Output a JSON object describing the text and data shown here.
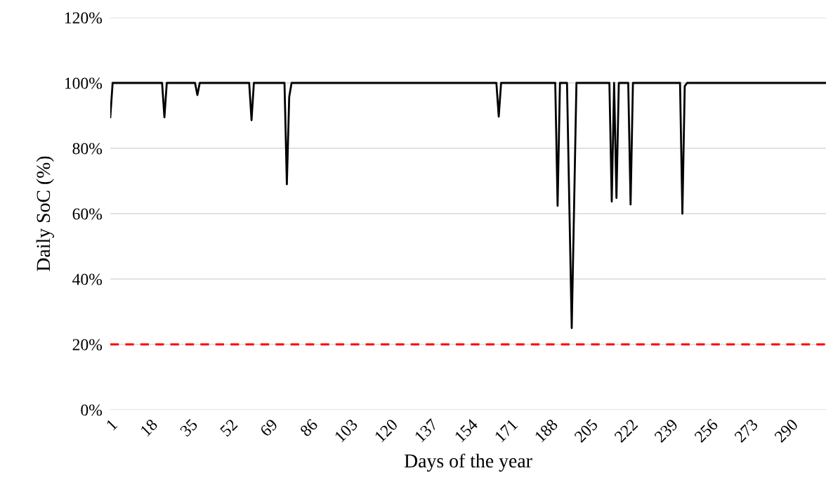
{
  "chart_data": {
    "type": "line",
    "xlabel": "Days of the year",
    "ylabel": "Daily SoC (%)",
    "series": [
      {
        "color": "#000000",
        "x": [
          1,
          2,
          23,
          24,
          25,
          37,
          38,
          39,
          60,
          61,
          62,
          75,
          76,
          77,
          78,
          165,
          166,
          167,
          190,
          191,
          192,
          195,
          196,
          197,
          198,
          199,
          213,
          214,
          215,
          216,
          217,
          221,
          222,
          223,
          243,
          244,
          245,
          246,
          305
        ],
        "values": [
          89.5,
          100,
          100,
          89.5,
          100,
          100,
          96.3,
          100,
          100,
          88.6,
          100,
          100,
          69,
          95.7,
          100,
          100,
          89.7,
          100,
          100,
          62.4,
          100,
          100,
          62,
          25,
          62,
          100,
          100,
          63.7,
          100,
          64.8,
          100,
          100,
          62.8,
          100,
          100,
          60,
          99,
          100,
          100
        ]
      }
    ],
    "xlim": [
      1,
      305
    ],
    "xticks": [
      1,
      18,
      35,
      52,
      69,
      86,
      103,
      120,
      137,
      154,
      171,
      188,
      205,
      222,
      239,
      256,
      273,
      290
    ],
    "ylim": [
      0,
      120
    ],
    "yticks": [
      {
        "value": 0,
        "label": "0%"
      },
      {
        "value": 20,
        "label": "20%"
      },
      {
        "value": 40,
        "label": "40%"
      },
      {
        "value": 60,
        "label": "60%"
      },
      {
        "value": 80,
        "label": "80%"
      },
      {
        "value": 100,
        "label": "100%"
      },
      {
        "value": 120,
        "label": "120%"
      }
    ],
    "ref_lines": [
      {
        "axis": "y",
        "value": 20,
        "color": "#ff0000",
        "line_style": "dashed"
      }
    ],
    "grid": "y",
    "marker": "none",
    "line_style": "solid"
  }
}
